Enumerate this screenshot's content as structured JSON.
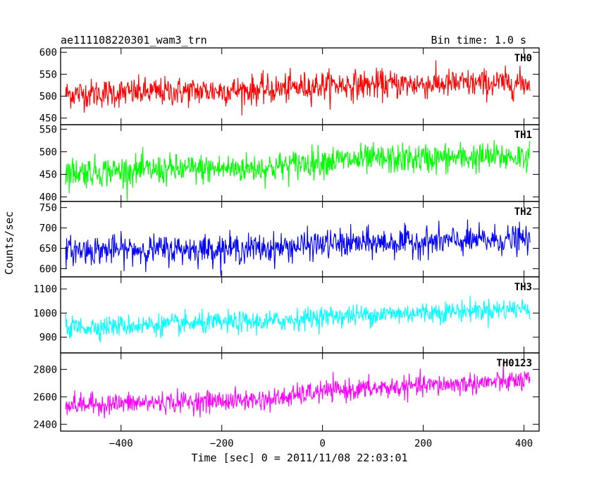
{
  "header": {
    "title": "ae111108220301_wam3_trn",
    "bin_time": "Bin time: 1.0 s"
  },
  "axes": {
    "xlabel": "Time [sec] 0 = 2011/11/08 22:03:01",
    "ylabel": "Counts/sec",
    "xlim": [
      -520,
      430
    ],
    "xticks": [
      -400,
      -200,
      0,
      200,
      400
    ],
    "xtick_labels": [
      "−400",
      "−200",
      "0",
      "200",
      "400"
    ]
  },
  "chart_data": {
    "type": "line",
    "title": "ae111108220301_wam3_trn",
    "xlabel": "Time [sec] 0 = 2011/11/08 22:03:01",
    "ylabel": "Counts/sec",
    "x_range": [
      -510,
      412
    ],
    "bin_time_s": 1.0,
    "grid": false,
    "legend": "none",
    "panels": [
      {
        "name": "TH0",
        "color": "#ff0000",
        "ylim": [
          435,
          610
        ],
        "yticks": [
          450,
          500,
          550,
          600
        ],
        "ytick_labels": [
          "450",
          "500",
          "550",
          "600"
        ],
        "trend": [
          [
            -510,
            505
          ],
          [
            -100,
            515
          ],
          [
            0,
            525
          ],
          [
            412,
            530
          ]
        ],
        "noise": 30
      },
      {
        "name": "TH1",
        "color": "#00ff00",
        "ylim": [
          390,
          560
        ],
        "yticks": [
          400,
          450,
          500,
          550
        ],
        "ytick_labels": [
          "400",
          "450",
          "500",
          "550"
        ],
        "trend": [
          [
            -510,
            455
          ],
          [
            -100,
            465
          ],
          [
            0,
            480
          ],
          [
            412,
            490
          ]
        ],
        "noise": 30
      },
      {
        "name": "TH2",
        "color": "#0000ff",
        "ylim": [
          580,
          765
        ],
        "yticks": [
          600,
          650,
          700,
          750
        ],
        "ytick_labels": [
          "600",
          "650",
          "700",
          "750"
        ],
        "trend": [
          [
            -510,
            645
          ],
          [
            -100,
            650
          ],
          [
            0,
            660
          ],
          [
            412,
            672
          ]
        ],
        "noise": 32
      },
      {
        "name": "TH3",
        "color": "#00ffff",
        "ylim": [
          835,
          1150
        ],
        "yticks": [
          900,
          1000,
          1100
        ],
        "ytick_labels": [
          "900",
          "1000",
          "1100"
        ],
        "trend": [
          [
            -510,
            940
          ],
          [
            -100,
            965
          ],
          [
            0,
            985
          ],
          [
            412,
            1020
          ]
        ],
        "noise": 40
      },
      {
        "name": "TH0123",
        "color": "#ff00ff",
        "ylim": [
          2350,
          2920
        ],
        "yticks": [
          2400,
          2600,
          2800
        ],
        "ytick_labels": [
          "2400",
          "2600",
          "2800"
        ],
        "trend": [
          [
            -510,
            2540
          ],
          [
            -100,
            2580
          ],
          [
            0,
            2640
          ],
          [
            412,
            2720
          ]
        ],
        "noise": 70
      }
    ]
  }
}
